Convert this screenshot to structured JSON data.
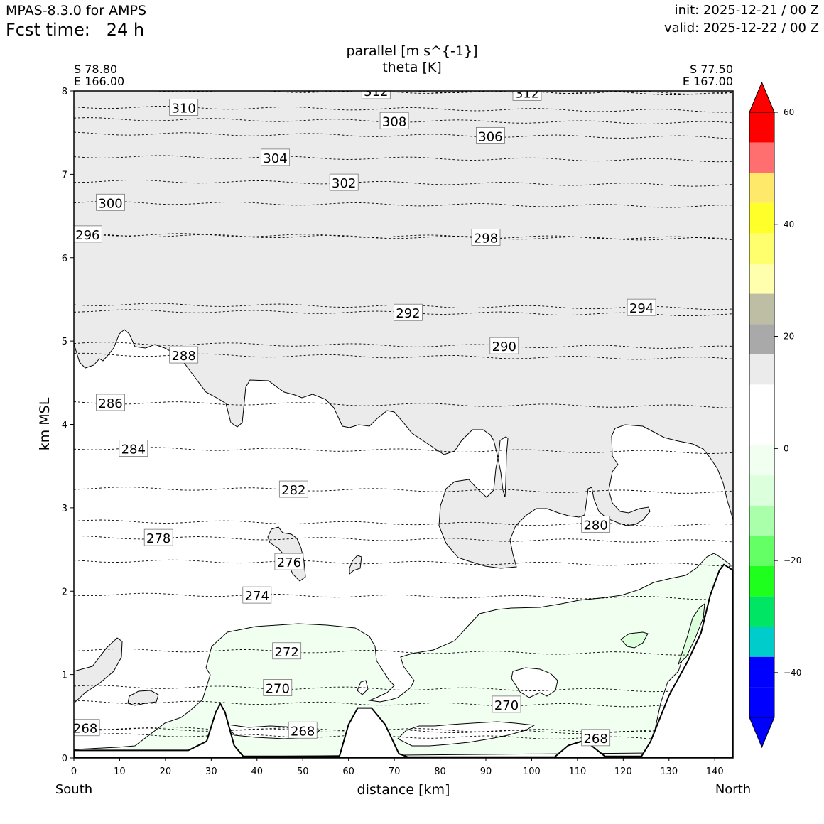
{
  "header": {
    "model": "MPAS-8.3.0 for AMPS",
    "fcst_prefix": "Fcst time:",
    "fcst_value": "24 h",
    "init": "init: 2025-12-21 / 00 Z",
    "valid": "valid: 2025-12-22 / 00 Z"
  },
  "chart_data": {
    "type": "cross-section",
    "title_line1": "parallel [m s^{-1}]",
    "title_line2": "theta [K]",
    "xlabel": "distance [km]",
    "ylabel": "km MSL",
    "xlim": [
      0,
      144
    ],
    "ylim": [
      0,
      8
    ],
    "x_ticks": [
      0,
      10,
      20,
      30,
      40,
      50,
      60,
      70,
      80,
      90,
      100,
      110,
      120,
      130,
      140
    ],
    "y_ticks": [
      0,
      1,
      2,
      3,
      4,
      5,
      6,
      7,
      8
    ],
    "left_end": {
      "lat": "S 78.80",
      "lon": "E 166.00",
      "direction": "South"
    },
    "right_end": {
      "lat": "S 77.50",
      "lon": "E 167.00",
      "direction": "North"
    },
    "colorbar": {
      "ticks": [
        60,
        40,
        20,
        0,
        -20,
        -40
      ],
      "tick_labels": [
        "60",
        "40",
        "20",
        "0",
        "−20",
        "−40"
      ],
      "colors_top_to_bottom": [
        "#ff0000",
        "#ff0000",
        "#ff6f6f",
        "#ffe96a",
        "#ffff2a",
        "#ffff6e",
        "#ffffae",
        "#bebea5",
        "#a9a9a9",
        "#ebebeb",
        "#ffffff",
        "#ffffff",
        "#f0fff0",
        "#dcffdc",
        "#aaffaa",
        "#64ff64",
        "#1eff1e",
        "#00e664",
        "#00cccc",
        "#0000ff",
        "#0000ff",
        "#0000ff"
      ]
    },
    "shading": {
      "upper_region_color": "#ebebeb",
      "lower_region_color": "#f0fff0",
      "terrain_color": "#ffffff"
    },
    "terrain_profile": [
      [
        0,
        0.09
      ],
      [
        25,
        0.09
      ],
      [
        29,
        0.2
      ],
      [
        31,
        0.55
      ],
      [
        32,
        0.65
      ],
      [
        33,
        0.55
      ],
      [
        35,
        0.15
      ],
      [
        37,
        0.02
      ],
      [
        58,
        0.02
      ],
      [
        60,
        0.4
      ],
      [
        62,
        0.6
      ],
      [
        65,
        0.6
      ],
      [
        68,
        0.4
      ],
      [
        71,
        0.05
      ],
      [
        73,
        0.01
      ],
      [
        105,
        0.01
      ],
      [
        108,
        0.15
      ],
      [
        111,
        0.2
      ],
      [
        113,
        0.15
      ],
      [
        116,
        0.02
      ],
      [
        124,
        0.02
      ],
      [
        126,
        0.2
      ],
      [
        130,
        0.75
      ],
      [
        134,
        1.15
      ],
      [
        137,
        1.5
      ],
      [
        139,
        1.95
      ],
      [
        141,
        2.25
      ],
      [
        142,
        2.32
      ],
      [
        144,
        2.25
      ]
    ],
    "theta_labels": [
      {
        "value": "310",
        "x": 24,
        "y": 7.8
      },
      {
        "value": "312",
        "x": 66,
        "y": 8.0
      },
      {
        "value": "312",
        "x": 99,
        "y": 7.98
      },
      {
        "value": "308",
        "x": 70,
        "y": 7.64
      },
      {
        "value": "306",
        "x": 91,
        "y": 7.46
      },
      {
        "value": "304",
        "x": 44,
        "y": 7.2
      },
      {
        "value": "302",
        "x": 59,
        "y": 6.9
      },
      {
        "value": "300",
        "x": 8,
        "y": 6.66
      },
      {
        "value": "298",
        "x": 90,
        "y": 6.24
      },
      {
        "value": "296",
        "x": 3,
        "y": 6.28
      },
      {
        "value": "294",
        "x": 124,
        "y": 5.4
      },
      {
        "value": "292",
        "x": 73,
        "y": 5.34
      },
      {
        "value": "290",
        "x": 94,
        "y": 4.94
      },
      {
        "value": "288",
        "x": 24,
        "y": 4.83
      },
      {
        "value": "286",
        "x": 8,
        "y": 4.26
      },
      {
        "value": "284",
        "x": 13,
        "y": 3.71
      },
      {
        "value": "282",
        "x": 48,
        "y": 3.22
      },
      {
        "value": "280",
        "x": 114,
        "y": 2.8
      },
      {
        "value": "278",
        "x": 18.5,
        "y": 2.64
      },
      {
        "value": "276",
        "x": 47,
        "y": 2.35
      },
      {
        "value": "274",
        "x": 40,
        "y": 1.95
      },
      {
        "value": "272",
        "x": 46.5,
        "y": 1.28
      },
      {
        "value": "270",
        "x": 44.5,
        "y": 0.84
      },
      {
        "value": "270",
        "x": 94.5,
        "y": 0.64
      },
      {
        "value": "268",
        "x": 2.5,
        "y": 0.36
      },
      {
        "value": "268",
        "x": 50,
        "y": 0.33
      },
      {
        "value": "268",
        "x": 114,
        "y": 0.24
      }
    ]
  }
}
